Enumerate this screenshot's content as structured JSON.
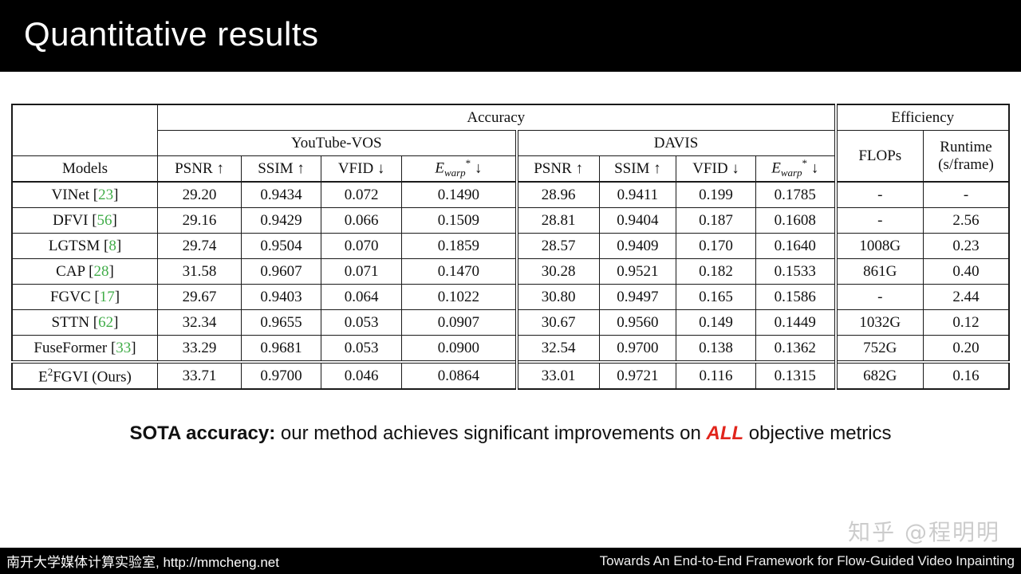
{
  "header": {
    "title": "Quantitative results"
  },
  "colors": {
    "citation_green": "#41ad49",
    "highlight_red": "#e1251c",
    "titlebar_black": "#000000",
    "watermark_gray": "#cccccc"
  },
  "chart_data": {
    "type": "table",
    "corner_header": "Models",
    "top_groups": [
      {
        "label": "Accuracy",
        "span": 8
      },
      {
        "label": "Efficiency",
        "span": 2
      }
    ],
    "dataset_groups": [
      {
        "label": "YouTube-VOS",
        "span": 4
      },
      {
        "label": "DAVIS",
        "span": 4
      }
    ],
    "efficiency_cols": [
      {
        "label": "FLOPs",
        "sublabel": ""
      },
      {
        "label": "Runtime",
        "sublabel": "(s/frame)"
      }
    ],
    "metric_cols": [
      {
        "label": "PSNR",
        "arrow": "↑"
      },
      {
        "label": "SSIM",
        "arrow": "↑"
      },
      {
        "label": "VFID",
        "arrow": "↓"
      },
      {
        "label": "E",
        "sub": "warp",
        "sup": "*",
        "arrow": "↓"
      }
    ],
    "rows": [
      {
        "model": {
          "name": "VINet",
          "cite": "23"
        },
        "yt": [
          "29.20",
          "0.9434",
          "0.072",
          "0.1490"
        ],
        "davis": [
          "28.96",
          "0.9411",
          "0.199",
          "0.1785"
        ],
        "flops": "-",
        "runtime": "-"
      },
      {
        "model": {
          "name": "DFVI",
          "cite": "56"
        },
        "yt": [
          "29.16",
          "0.9429",
          "0.066",
          "0.1509"
        ],
        "davis": [
          "28.81",
          "0.9404",
          "0.187",
          "0.1608"
        ],
        "flops": "-",
        "runtime": "2.56"
      },
      {
        "model": {
          "name": "LGTSM",
          "cite": "8"
        },
        "yt": [
          "29.74",
          "0.9504",
          "0.070",
          "0.1859"
        ],
        "davis": [
          "28.57",
          "0.9409",
          "0.170",
          "0.1640"
        ],
        "flops": "1008G",
        "runtime": "0.23"
      },
      {
        "model": {
          "name": "CAP",
          "cite": "28"
        },
        "yt": [
          "31.58",
          "0.9607",
          "0.071",
          "0.1470"
        ],
        "davis": [
          "30.28",
          "0.9521",
          "0.182",
          "0.1533"
        ],
        "flops": "861G",
        "runtime": "0.40"
      },
      {
        "model": {
          "name": "FGVC",
          "cite": "17"
        },
        "yt": [
          "29.67",
          "0.9403",
          "0.064",
          "0.1022"
        ],
        "davis": [
          "30.80",
          "0.9497",
          "0.165",
          "0.1586"
        ],
        "flops": "-",
        "runtime": "2.44"
      },
      {
        "model": {
          "name": "STTN",
          "cite": "62"
        },
        "yt": [
          "32.34",
          "0.9655",
          "0.053",
          "0.0907"
        ],
        "davis": [
          "30.67",
          "0.9560",
          "0.149",
          "0.1449"
        ],
        "flops": "1032G",
        "runtime": "0.12"
      },
      {
        "model": {
          "name": "FuseFormer",
          "cite": "33"
        },
        "yt": [
          "33.29",
          "0.9681",
          "0.053",
          "0.0900"
        ],
        "davis": [
          "32.54",
          "0.9700",
          "0.138",
          "0.1362"
        ],
        "flops": "752G",
        "runtime": "0.20"
      },
      {
        "model": {
          "name_base": "E",
          "name_sup": "2",
          "name_rest": "FGVI (Ours)"
        },
        "yt": [
          "33.71",
          "0.9700",
          "0.046",
          "0.0864"
        ],
        "davis": [
          "33.01",
          "0.9721",
          "0.116",
          "0.1315"
        ],
        "flops": "682G",
        "runtime": "0.16",
        "bold_metrics": true,
        "ours": true
      }
    ]
  },
  "caption": {
    "lead": "SOTA accuracy:",
    "middle": " our method achieves significant improvements on ",
    "highlight": "ALL",
    "tail": " objective metrics"
  },
  "watermark": "知乎 @程明明",
  "footer": {
    "left": "南开大学媒体计算实验室, http://mmcheng.net",
    "right": "Towards An End-to-End Framework for Flow-Guided Video Inpainting"
  }
}
